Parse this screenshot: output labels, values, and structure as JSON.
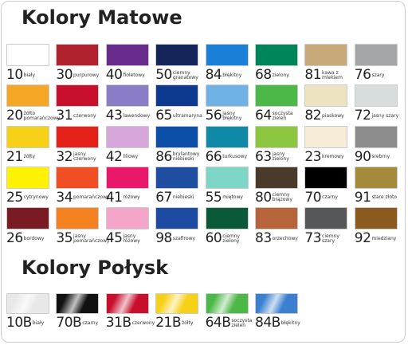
{
  "sections": [
    {
      "title": "Kolory Matowe",
      "swatches": [
        {
          "code": "10",
          "name": "biały",
          "color": "#ffffff"
        },
        {
          "code": "30",
          "name": "purpurowy",
          "color": "#b0222e"
        },
        {
          "code": "40",
          "name": "fioletowy",
          "color": "#6a2c8c"
        },
        {
          "code": "50",
          "name": "ciemny granatowy",
          "color": "#14255a"
        },
        {
          "code": "84",
          "name": "błękitny",
          "color": "#1a7fd6"
        },
        {
          "code": "68",
          "name": "zielony",
          "color": "#00855a"
        },
        {
          "code": "81",
          "name": "kawa z mlekiem",
          "color": "#c8aa7a"
        },
        {
          "code": "76",
          "name": "szary",
          "color": "#a3a6a8"
        },
        {
          "code": "20",
          "name": "żółto pomarańczowy",
          "color": "#f5a623"
        },
        {
          "code": "31",
          "name": "czerwony",
          "color": "#c8102e"
        },
        {
          "code": "43",
          "name": "lawendowy",
          "color": "#8b7cc8"
        },
        {
          "code": "65",
          "name": "ultramaryna",
          "color": "#0d3a8e"
        },
        {
          "code": "56",
          "name": "jasny błękitny",
          "color": "#6fb3e6"
        },
        {
          "code": "64",
          "name": "soczysta zieleń",
          "color": "#4cb848"
        },
        {
          "code": "82",
          "name": "piaskowy",
          "color": "#eee3c0"
        },
        {
          "code": "72",
          "name": "jasny szary",
          "color": "#d7dcdd"
        },
        {
          "code": "21",
          "name": "żółty",
          "color": "#f7d117"
        },
        {
          "code": "32",
          "name": "jasny czerwony",
          "color": "#e32119"
        },
        {
          "code": "42",
          "name": "liliowy",
          "color": "#d7a6da"
        },
        {
          "code": "86",
          "name": "brylantowy niebieski",
          "color": "#0b4fa8"
        },
        {
          "code": "66",
          "name": "turkusowy",
          "color": "#0e8aa8"
        },
        {
          "code": "63",
          "name": "jasny zielony",
          "color": "#8cc63f"
        },
        {
          "code": "23",
          "name": "kremowy",
          "color": "#f6ecd7"
        },
        {
          "code": "90",
          "name": "srebrny",
          "color": "#8c8c8c"
        },
        {
          "code": "25",
          "name": "cytrynowy",
          "color": "#fff200"
        },
        {
          "code": "34",
          "name": "pomarańczowy",
          "color": "#f04e23"
        },
        {
          "code": "41",
          "name": "różowy",
          "color": "#e8186b"
        },
        {
          "code": "67",
          "name": "niebieski",
          "color": "#1f4ea1"
        },
        {
          "code": "55",
          "name": "miętowy",
          "color": "#7ed7c6"
        },
        {
          "code": "80",
          "name": "ciemny brązowy",
          "color": "#4a3a2a"
        },
        {
          "code": "70",
          "name": "czarny",
          "color": "#000000"
        },
        {
          "code": "91",
          "name": "stare złoto",
          "color": "#a68a3c"
        },
        {
          "code": "26",
          "name": "bordowy",
          "color": "#7a1a22"
        },
        {
          "code": "35",
          "name": "jasny pomarańczowy",
          "color": "#f58220"
        },
        {
          "code": "45",
          "name": "jasny różowy",
          "color": "#f4a6c8"
        },
        {
          "code": "98",
          "name": "szafirowy",
          "color": "#1b4aa0"
        },
        {
          "code": "60",
          "name": "ciemny zielony",
          "color": "#0a5a3a"
        },
        {
          "code": "83",
          "name": "orzechowy",
          "color": "#b8643a"
        },
        {
          "code": "73",
          "name": "ciemny szary",
          "color": "#555759"
        },
        {
          "code": "92",
          "name": "miedziany",
          "color": "#8a5a1e"
        }
      ]
    },
    {
      "title": "Kolory Połysk",
      "swatches": [
        {
          "code": "10B",
          "name": "biały",
          "color": "#e8e8e8"
        },
        {
          "code": "70B",
          "name": "czarny",
          "color": "#111111"
        },
        {
          "code": "31B",
          "name": "czerwony",
          "color": "#c8102e"
        },
        {
          "code": "21B",
          "name": "żółty",
          "color": "#f7d117"
        },
        {
          "code": "64B",
          "name": "soczysta zieleń",
          "color": "#4cb848"
        },
        {
          "code": "84B",
          "name": "błękitny",
          "color": "#3a7fd0"
        }
      ]
    }
  ]
}
